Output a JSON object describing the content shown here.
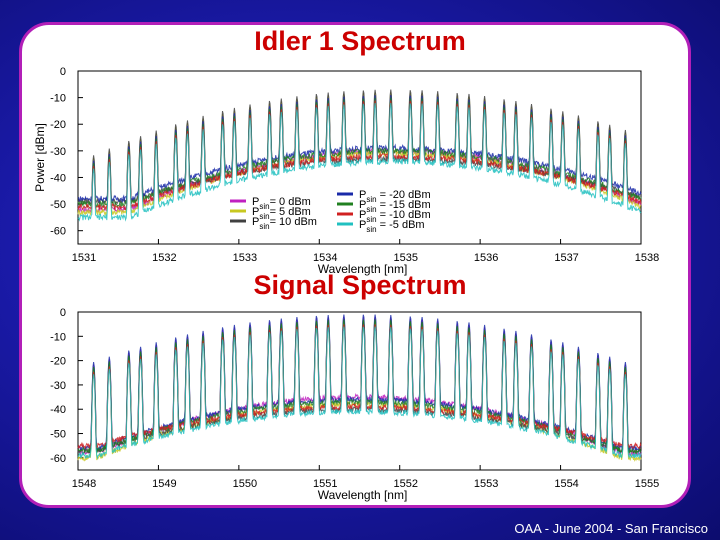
{
  "footer": "OAA - June 2004 - San Francisco",
  "colors": {
    "background": "#1a1aa8",
    "panel_border": "#b21fb8",
    "title": "#cc0000"
  },
  "chart_data": [
    {
      "type": "line",
      "title": "Idler 1 Spectrum",
      "xlabel": "Wavelength [nm]",
      "ylabel": "Power [dBm]",
      "xlim": [
        1531,
        1538
      ],
      "ylim": [
        -65,
        0
      ],
      "x_ticks": [
        "1531",
        "1532",
        "1533",
        "1534",
        "1535",
        "1536",
        "1537",
        "1538"
      ],
      "y_ticks": [
        "0",
        "-10",
        "-20",
        "-30",
        "-40",
        "-50",
        "-60"
      ],
      "legend_placement": "center",
      "peak_center": 1534.9,
      "peak_count": 35,
      "series": [
        {
          "name": "P_sin = 0 dBm",
          "color": "#c020c0",
          "floor_edge": -52,
          "floor_center": -30,
          "peak_level": -10
        },
        {
          "name": "P_sin = 5 dBm",
          "color": "#c8c820",
          "floor_edge": -53,
          "floor_center": -31,
          "peak_level": -8
        },
        {
          "name": "P_sin = 10 dBm",
          "color": "#404040",
          "floor_edge": -49,
          "floor_center": -33,
          "peak_level": -7
        },
        {
          "name": "P_sin = -20 dBm",
          "color": "#1a2aa8",
          "floor_edge": -48,
          "floor_center": -29,
          "peak_level": -9
        },
        {
          "name": "P_sin = -15 dBm",
          "color": "#208020",
          "floor_edge": -50,
          "floor_center": -30,
          "peak_level": -10
        },
        {
          "name": "P_sin = -10 dBm",
          "color": "#d02020",
          "floor_edge": -51,
          "floor_center": -32,
          "peak_level": -11
        },
        {
          "name": "P_sin = -5 dBm",
          "color": "#20c0c0",
          "floor_edge": -55,
          "floor_center": -34,
          "peak_level": -12
        }
      ],
      "legend_left": [
        {
          "label": "P",
          "sub": "sin",
          "text": "= 0 dBm",
          "color": "#c020c0"
        },
        {
          "label": "P",
          "sub": "sin",
          "text": "= 5 dBm",
          "color": "#c8c820"
        },
        {
          "label": "P",
          "sub": "sin",
          "text": "= 10 dBm",
          "color": "#404040"
        }
      ],
      "legend_right": [
        {
          "label": "P",
          "sub": "sin",
          "text": " = -20 dBm",
          "color": "#1a2aa8"
        },
        {
          "label": "P",
          "sub": "sin",
          "text": " = -15 dBm",
          "color": "#208020"
        },
        {
          "label": "P",
          "sub": "sin",
          "text": " = -10 dBm",
          "color": "#d02020"
        },
        {
          "label": "P",
          "sub": "sin",
          "text": " = -5 dBm",
          "color": "#20c0c0"
        }
      ]
    },
    {
      "type": "line",
      "title": "Signal Spectrum",
      "xlabel": "Wavelength [nm]",
      "ylabel": "",
      "xlim": [
        1548,
        1555
      ],
      "ylim": [
        -65,
        0
      ],
      "x_ticks": [
        "1548",
        "1549",
        "1550",
        "1551",
        "1552",
        "1553",
        "1554",
        "1555"
      ],
      "y_ticks": [
        "0",
        "-10",
        "-20",
        "-30",
        "-40",
        "-50",
        "-60"
      ],
      "peak_center": 1551.5,
      "peak_count": 35,
      "series": [
        {
          "color": "#c020c0",
          "floor_edge": -58,
          "floor_center": -35,
          "peak_level": -2
        },
        {
          "color": "#c8c820",
          "floor_edge": -60,
          "floor_center": -38,
          "peak_level": -4
        },
        {
          "color": "#404040",
          "floor_edge": -57,
          "floor_center": -40,
          "peak_level": -3
        },
        {
          "color": "#1a2aa8",
          "floor_edge": -56,
          "floor_center": -36,
          "peak_level": -1
        },
        {
          "color": "#208020",
          "floor_edge": -57,
          "floor_center": -37,
          "peak_level": -3
        },
        {
          "color": "#d02020",
          "floor_edge": -55,
          "floor_center": -39,
          "peak_level": -5
        },
        {
          "color": "#20c0c0",
          "floor_edge": -59,
          "floor_center": -41,
          "peak_level": -6
        }
      ]
    }
  ]
}
